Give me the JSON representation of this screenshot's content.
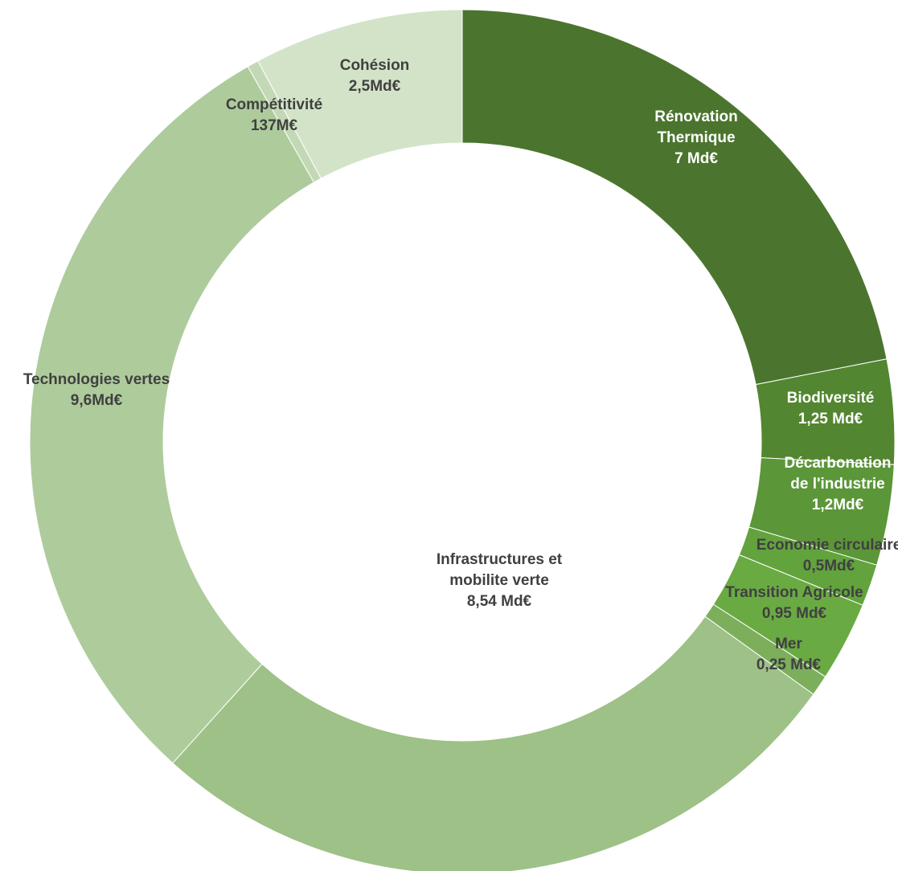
{
  "chart_data": {
    "type": "pie",
    "variant": "donut",
    "title": "",
    "slices": [
      {
        "lines": [
          "Rénovation",
          "Thermique",
          "7 Md€"
        ],
        "value": 7,
        "color": "#4b752e",
        "label_color": "#ffffff"
      },
      {
        "lines": [
          "Biodiversité",
          "1,25 Md€"
        ],
        "value": 1.25,
        "color": "#538630",
        "label_color": "#ffffff"
      },
      {
        "lines": [
          "Décarbonation",
          "de l'industrie",
          "1,2Md€"
        ],
        "value": 1.2,
        "color": "#5b9639",
        "label_color": "#ffffff"
      },
      {
        "lines": [
          "Economie circulaire",
          "0,5Md€"
        ],
        "value": 0.5,
        "color": "#62a33d",
        "label_color": "#404040"
      },
      {
        "lines": [
          "Transition Agricole",
          "0,95 Md€"
        ],
        "value": 0.95,
        "color": "#6aaa43",
        "label_color": "#404040"
      },
      {
        "lines": [
          "Mer",
          "0,25 Md€"
        ],
        "value": 0.25,
        "color": "#7cae5c",
        "label_color": "#404040"
      },
      {
        "lines": [
          "Infrastructures et",
          "mobilite verte",
          "8,54 Md€"
        ],
        "value": 8.54,
        "color": "#9dc187",
        "label_color": "#404040"
      },
      {
        "lines": [
          "Technologies vertes",
          "9,6Md€"
        ],
        "value": 9.6,
        "color": "#aecb9c",
        "label_color": "#404040"
      },
      {
        "lines": [
          "Compétitivité",
          "137M€"
        ],
        "value": 0.137,
        "color": "#c3d9b5",
        "label_color": "#404040"
      },
      {
        "lines": [
          "Cohésion",
          "2,5Md€"
        ],
        "value": 2.5,
        "color": "#d3e3c8",
        "label_color": "#404040"
      }
    ]
  }
}
